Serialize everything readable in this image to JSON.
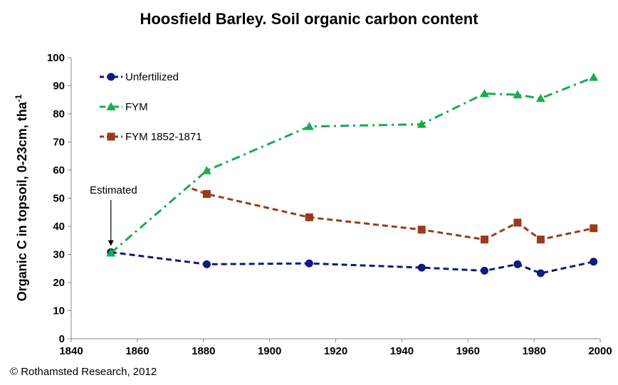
{
  "chart_data": {
    "type": "line",
    "title": "Hoosfield Barley. Soil organic carbon content",
    "xlabel": "",
    "ylabel": "Organic C in topsoil, 0-23cm, tha",
    "ylabel_superscript": "-1",
    "xlim": [
      1840,
      2000
    ],
    "ylim": [
      0,
      100
    ],
    "xticks": [
      1840,
      1860,
      1880,
      1900,
      1920,
      1940,
      1960,
      1980,
      2000
    ],
    "yticks": [
      0,
      10,
      20,
      30,
      40,
      50,
      60,
      70,
      80,
      90,
      100
    ],
    "grid": false,
    "legend_position": "top-left",
    "series": [
      {
        "name": "Unfertilized",
        "color": "#101a7c",
        "marker": "circle",
        "dash": "dashed",
        "x": [
          1852,
          1881,
          1912,
          1946,
          1965,
          1975,
          1982,
          1998
        ],
        "y": [
          30.8,
          26.5,
          26.8,
          25.3,
          24.2,
          26.5,
          23.3,
          27.4
        ]
      },
      {
        "name": "FYM",
        "color": "#1aab50",
        "marker": "triangle",
        "dash": "dashdot",
        "x": [
          1852,
          1881,
          1912,
          1946,
          1965,
          1975,
          1982,
          1998
        ],
        "y": [
          30.5,
          59.8,
          75.5,
          76.3,
          87.2,
          86.8,
          85.5,
          93.0
        ]
      },
      {
        "name": "FYM 1852-1871",
        "color": "#9c3a1e",
        "marker": "square",
        "dash": "dashed",
        "x": [
          1876.5,
          1881,
          1912,
          1946,
          1965,
          1975,
          1982,
          1998
        ],
        "y": [
          53.4,
          51.5,
          43.2,
          38.8,
          35.3,
          41.3,
          35.3,
          39.3
        ],
        "marker_from_index": 1
      }
    ],
    "annotations": [
      {
        "text": "Estimated",
        "arrow_to": {
          "x": 1852,
          "y": 33
        }
      }
    ]
  },
  "copyright": "© Rothamsted Research, 2012"
}
